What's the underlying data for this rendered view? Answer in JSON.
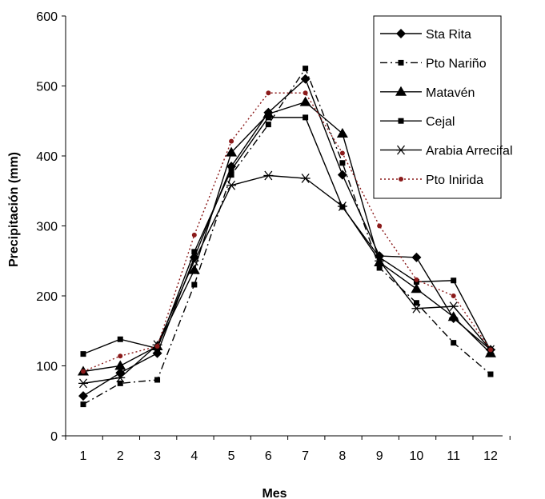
{
  "chart_data": {
    "type": "line",
    "title": "",
    "xlabel": "Mes",
    "ylabel": "Precipitación (mm)",
    "x": [
      1,
      2,
      3,
      4,
      5,
      6,
      7,
      8,
      9,
      10,
      11,
      12
    ],
    "ylim": [
      0,
      600
    ],
    "yticks": [
      0,
      100,
      200,
      300,
      400,
      500,
      600
    ],
    "grid": false,
    "legend_position": "top-right",
    "series": [
      {
        "name": "Sta Rita",
        "marker": "diamond",
        "line": "solid",
        "color": "#000000",
        "values": [
          57,
          90,
          118,
          255,
          385,
          462,
          510,
          373,
          257,
          255,
          168,
          123
        ]
      },
      {
        "name": "Pto Nariño",
        "marker": "square",
        "line": "dashdot",
        "color": "#000000",
        "values": [
          45,
          75,
          80,
          216,
          373,
          445,
          525,
          390,
          240,
          190,
          133,
          88
        ]
      },
      {
        "name": "Matavén",
        "marker": "triangle",
        "line": "solid",
        "color": "#000000",
        "values": [
          92,
          100,
          128,
          237,
          405,
          460,
          477,
          432,
          248,
          210,
          170,
          118
        ]
      },
      {
        "name": "Cejal",
        "marker": "square",
        "line": "solid",
        "color": "#000000",
        "values": [
          117,
          138,
          125,
          263,
          380,
          455,
          455,
          327,
          255,
          220,
          222,
          122
        ]
      },
      {
        "name": "Arabia Arrecifal",
        "marker": "asterisk",
        "line": "solid",
        "color": "#000000",
        "values": [
          75,
          83,
          130,
          250,
          358,
          372,
          368,
          328,
          250,
          182,
          185,
          123
        ]
      },
      {
        "name": "Pto Inirida",
        "marker": "circle",
        "line": "dotted",
        "color": "#8b1a1a",
        "values": [
          92,
          114,
          128,
          287,
          421,
          490,
          490,
          404,
          300,
          223,
          200,
          123
        ]
      }
    ]
  }
}
